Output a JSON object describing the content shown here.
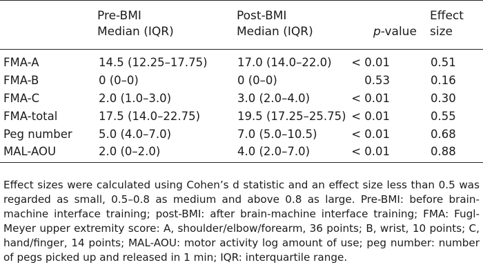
{
  "table": {
    "headers": {
      "label": "",
      "pre_line1": "Pre-BMI",
      "pre_line2": "Median (IQR)",
      "post_line1": "Post-BMI",
      "post_line2": "Median (IQR)",
      "pvalue_italic": "p",
      "pvalue_rest": "-value",
      "effect_line1": "Effect",
      "effect_line2": "size"
    },
    "rows": [
      {
        "label": "FMA-A",
        "pre": "14.5 (12.25–17.75)",
        "post": "17.0 (14.0–22.0)",
        "p": "< 0.01",
        "effect": "0.51"
      },
      {
        "label": "FMA-B",
        "pre": "0 (0–0)",
        "post": "0 (0–0)",
        "p": "0.53",
        "effect": "0.16"
      },
      {
        "label": "FMA-C",
        "pre": "2.0 (1.0–3.0)",
        "post": "3.0 (2.0–4.0)",
        "p": "< 0.01",
        "effect": "0.30"
      },
      {
        "label": "FMA-total",
        "pre": "17.5 (14.0–22.75)",
        "post": "19.5 (17.25–25.75)",
        "p": "< 0.01",
        "effect": "0.55"
      },
      {
        "label": "Peg number",
        "pre": "5.0 (4.0–7.0)",
        "post": "7.0 (5.0–10.5)",
        "p": "< 0.01",
        "effect": "0.68"
      },
      {
        "label": "MAL-AOU",
        "pre": "2.0 (0–2.0)",
        "post": "4.0 (2.0–7.0)",
        "p": "< 0.01",
        "effect": "0.88"
      }
    ]
  },
  "footnote": "Effect sizes were calculated using Cohen’s d statistic and an effect size less than 0.5 was regarded as small, 0.5–0.8 as medium and above 0.8 as large. Pre-BMI: before brain-machine interface training; post-BMI: after brain-machine interface training; FMA: Fugl-Meyer upper extremity score: A, shoulder/elbow/forearm, 36 points; B, wrist, 10 points; C, hand/finger, 14 points; MAL-AOU: motor activity log amount of use; peg number: number of pegs picked up and released in 1 min; IQR: interquartile range."
}
